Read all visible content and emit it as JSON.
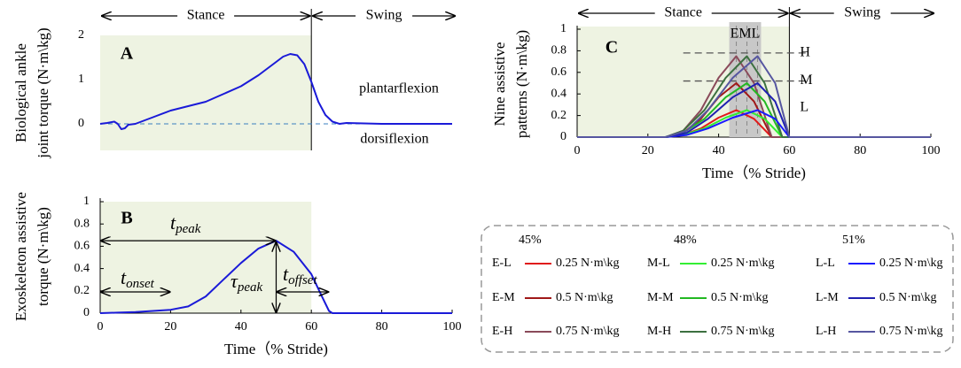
{
  "chart_data": [
    {
      "type": "line",
      "panel": "A",
      "ylabel": [
        "Biological ankle",
        "joint torque (N·m\\kg)"
      ],
      "phases": [
        "Stance",
        "Swing"
      ],
      "stance_end": 60,
      "xlim": [
        0,
        100
      ],
      "ylim": [
        -0.6,
        2
      ],
      "yticks": [
        0,
        1,
        2
      ],
      "baseline": 0,
      "series": [
        {
          "color": "#1a1ad8",
          "x": [
            0,
            2,
            4,
            5,
            6,
            7,
            8,
            10,
            15,
            20,
            30,
            40,
            45,
            50,
            52,
            54,
            56,
            58,
            60,
            62,
            64,
            66,
            68,
            70,
            80,
            100
          ],
          "values": [
            0,
            0.02,
            0.05,
            0,
            -0.12,
            -0.1,
            -0.02,
            0,
            0.15,
            0.3,
            0.5,
            0.85,
            1.1,
            1.4,
            1.52,
            1.58,
            1.55,
            1.35,
            0.95,
            0.5,
            0.2,
            0.05,
            0,
            0.02,
            0,
            0
          ]
        }
      ],
      "annotations": [
        "plantarflexion",
        "dorsiflexion"
      ]
    },
    {
      "type": "line",
      "panel": "B",
      "ylabel": [
        "Exoskeleton assistive",
        "torque (N·m\\kg)"
      ],
      "xlabel": "Time（% Stride)",
      "stance_end": 60,
      "xlim": [
        0,
        100
      ],
      "ylim": [
        0,
        1
      ],
      "xticks": [
        0,
        20,
        40,
        60,
        80,
        100
      ],
      "yticks": [
        0,
        0.2,
        0.4,
        0.6,
        0.8,
        1
      ],
      "series": [
        {
          "color": "#1a1ad8",
          "x": [
            0,
            5,
            10,
            15,
            20,
            25,
            30,
            35,
            40,
            45,
            50,
            55,
            60,
            63,
            65,
            66,
            100
          ],
          "values": [
            0,
            0.005,
            0.01,
            0.02,
            0.03,
            0.06,
            0.15,
            0.3,
            0.45,
            0.58,
            0.65,
            0.55,
            0.35,
            0.15,
            0.02,
            0,
            0
          ]
        }
      ],
      "annotations": [
        {
          "text": "t",
          "sub": "peak"
        },
        {
          "text": "t",
          "sub": "onset"
        },
        {
          "text": "τ",
          "sub": "peak"
        },
        {
          "text": "t",
          "sub": "offset"
        }
      ]
    },
    {
      "type": "line",
      "panel": "C",
      "ylabel": [
        "Nine assistive",
        "patterns (N·m\\kg)"
      ],
      "xlabel": "Time（% Stride)",
      "phases": [
        "Stance",
        "Swing"
      ],
      "stance_end": 60,
      "xlim": [
        0,
        100
      ],
      "ylim": [
        0,
        1
      ],
      "xticks": [
        0,
        20,
        40,
        60,
        80,
        100
      ],
      "yticks": [
        0,
        0.2,
        0.4,
        0.6,
        0.8,
        1
      ],
      "band": {
        "label": "EML",
        "range": [
          43,
          52
        ],
        "timings": [
          45,
          48,
          51
        ]
      },
      "levels": [
        {
          "label": "H",
          "value": 0.78,
          "dashed": true
        },
        {
          "label": "M",
          "value": 0.52,
          "dashed": true
        },
        {
          "label": "L",
          "value": 0.27,
          "dashed": false
        }
      ],
      "groups": [
        "45%",
        "48%",
        "51%"
      ],
      "series": [
        {
          "name": "E-L",
          "level_label": "0.25 N·m\\kg",
          "color": "#e01b1b",
          "x": [
            0,
            25,
            30,
            35,
            40,
            45,
            50,
            55,
            100
          ],
          "values": [
            0,
            0,
            0.02,
            0.08,
            0.18,
            0.25,
            0.17,
            0,
            0
          ]
        },
        {
          "name": "E-M",
          "level_label": "0.5 N·m\\kg",
          "color": "#a01818",
          "x": [
            0,
            25,
            30,
            35,
            40,
            45,
            50,
            55,
            100
          ],
          "values": [
            0,
            0,
            0.04,
            0.17,
            0.37,
            0.5,
            0.33,
            0,
            0
          ]
        },
        {
          "name": "E-H",
          "level_label": "0.75 N·m\\kg",
          "color": "#8a4a5a",
          "x": [
            0,
            25,
            30,
            35,
            40,
            45,
            50,
            55,
            100
          ],
          "values": [
            0,
            0,
            0.06,
            0.25,
            0.55,
            0.75,
            0.5,
            0,
            0
          ]
        },
        {
          "name": "M-L",
          "level_label": "0.25 N·m\\kg",
          "color": "#33ee33",
          "x": [
            0,
            25,
            30,
            36,
            42,
            48,
            53,
            58,
            100
          ],
          "values": [
            0,
            0,
            0.02,
            0.08,
            0.18,
            0.25,
            0.17,
            0,
            0
          ]
        },
        {
          "name": "M-M",
          "level_label": "0.5 N·m\\kg",
          "color": "#22b822",
          "x": [
            0,
            25,
            30,
            36,
            42,
            48,
            53,
            58,
            100
          ],
          "values": [
            0,
            0,
            0.04,
            0.17,
            0.37,
            0.5,
            0.33,
            0,
            0
          ]
        },
        {
          "name": "M-H",
          "level_label": "0.75 N·m\\kg",
          "color": "#3c7040",
          "x": [
            0,
            25,
            30,
            36,
            42,
            48,
            53,
            58,
            100
          ],
          "values": [
            0,
            0,
            0.06,
            0.25,
            0.55,
            0.75,
            0.5,
            0,
            0
          ]
        },
        {
          "name": "L-L",
          "level_label": "0.25 N·m\\kg",
          "color": "#1a1aff",
          "x": [
            0,
            25,
            31,
            37,
            44,
            51,
            56,
            60,
            100
          ],
          "values": [
            0,
            0,
            0.02,
            0.08,
            0.18,
            0.25,
            0.17,
            0,
            0
          ]
        },
        {
          "name": "L-M",
          "level_label": "0.5 N·m\\kg",
          "color": "#2020b0",
          "x": [
            0,
            25,
            31,
            37,
            44,
            51,
            56,
            60,
            100
          ],
          "values": [
            0,
            0,
            0.04,
            0.17,
            0.37,
            0.5,
            0.33,
            0,
            0
          ]
        },
        {
          "name": "L-H",
          "level_label": "0.75 N·m\\kg",
          "color": "#5656a0",
          "x": [
            0,
            25,
            31,
            37,
            44,
            51,
            56,
            60,
            100
          ],
          "values": [
            0,
            0,
            0.06,
            0.25,
            0.55,
            0.75,
            0.5,
            0,
            0
          ]
        }
      ]
    }
  ]
}
